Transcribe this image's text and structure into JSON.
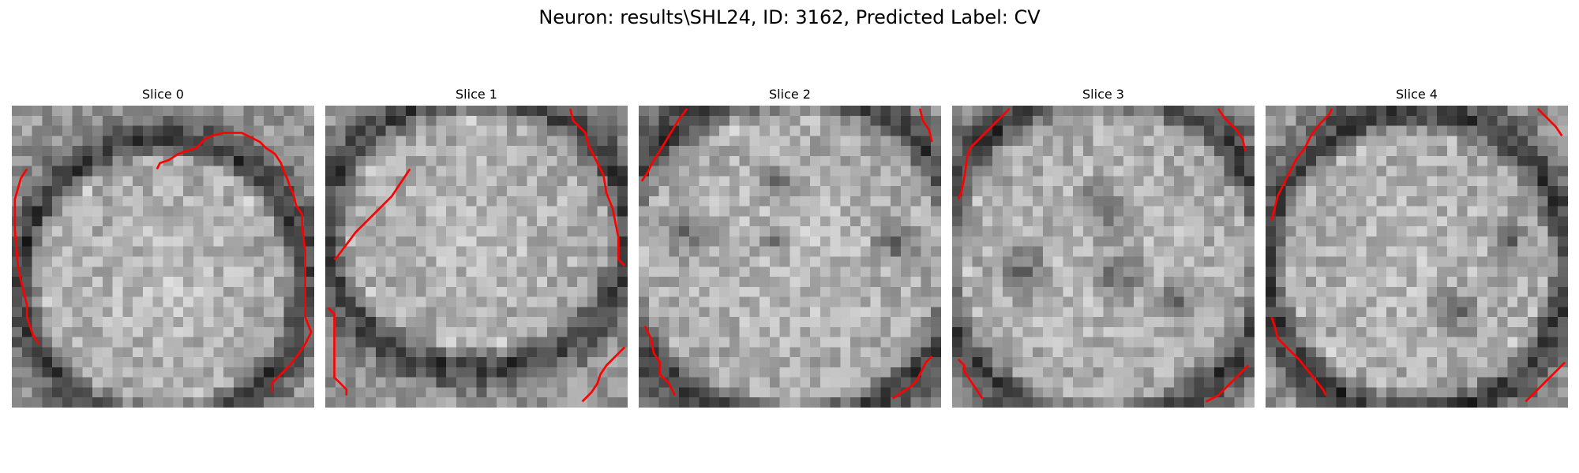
{
  "figure": {
    "title": "Neuron: results\\SHL24, ID: 3162, Predicted Label: CV",
    "contour_color": "#ff0000",
    "colormap": "gray",
    "slices": [
      {
        "title": "Slice 0",
        "seed": 11,
        "center": [
          0.5,
          0.58
        ],
        "radius": [
          0.47,
          0.47
        ],
        "dark_spots": [],
        "contours": [
          [
            [
              5,
              21
            ],
            [
              3,
              24
            ],
            [
              1,
              31
            ],
            [
              1,
              41
            ],
            [
              2,
              53
            ],
            [
              3,
              58
            ],
            [
              5,
              66
            ],
            [
              5,
              70
            ],
            [
              7,
              76
            ],
            [
              9,
              79
            ]
          ],
          [
            [
              48,
              21
            ],
            [
              49,
              19
            ],
            [
              52,
              18
            ],
            [
              55,
              16
            ],
            [
              58,
              15
            ],
            [
              61,
              14
            ],
            [
              63,
              12
            ],
            [
              64,
              11
            ],
            [
              66,
              10
            ],
            [
              70,
              9
            ],
            [
              76,
              9
            ],
            [
              80,
              11
            ],
            [
              82,
              12
            ],
            [
              84,
              14
            ],
            [
              87,
              16
            ],
            [
              89,
              19
            ],
            [
              90,
              22
            ],
            [
              91,
              24
            ],
            [
              92,
              27
            ],
            [
              93,
              29
            ],
            [
              94,
              33
            ],
            [
              96,
              36
            ],
            [
              96,
              40
            ],
            [
              97,
              48
            ],
            [
              97,
              58
            ],
            [
              97,
              70
            ],
            [
              99,
              75
            ],
            [
              97,
              79
            ],
            [
              95,
              82
            ],
            [
              92,
              86
            ],
            [
              88,
              90
            ],
            [
              86,
              92
            ],
            [
              86,
              95
            ]
          ]
        ]
      },
      {
        "title": "Slice 1",
        "seed": 23,
        "center": [
          0.5,
          0.42
        ],
        "radius": [
          0.5,
          0.45
        ],
        "dark_spots": [],
        "contours": [
          [
            [
              3,
              51
            ],
            [
              4,
              50
            ],
            [
              7,
              46
            ],
            [
              10,
              42
            ],
            [
              13,
              39
            ],
            [
              16,
              36
            ],
            [
              19,
              33
            ],
            [
              22,
              30
            ],
            [
              24,
              27
            ],
            [
              26,
              24
            ],
            [
              28,
              21
            ]
          ],
          [
            [
              1,
              67
            ],
            [
              3,
              69
            ],
            [
              3,
              72
            ],
            [
              3,
              80
            ],
            [
              3,
              90
            ],
            [
              5,
              92
            ],
            [
              7,
              94
            ],
            [
              7,
              96
            ]
          ],
          [
            [
              81,
              1
            ],
            [
              82,
              5
            ],
            [
              86,
              9
            ],
            [
              87,
              13
            ],
            [
              90,
              19
            ],
            [
              92,
              23
            ],
            [
              93,
              29
            ],
            [
              95,
              34
            ],
            [
              97,
              44
            ],
            [
              97,
              51
            ],
            [
              99,
              53
            ]
          ],
          [
            [
              85,
              98
            ],
            [
              88,
              95
            ],
            [
              90,
              92
            ],
            [
              91,
              89
            ],
            [
              93,
              86
            ],
            [
              95,
              84
            ],
            [
              99,
              80
            ]
          ]
        ]
      },
      {
        "title": "Slice 2",
        "seed": 37,
        "center": [
          0.5,
          0.5
        ],
        "radius": [
          0.58,
          0.55
        ],
        "dark_spots": [
          [
            0.17,
            0.42,
            0.07
          ],
          [
            0.45,
            0.25,
            0.05
          ],
          [
            0.45,
            0.45,
            0.05
          ],
          [
            0.85,
            0.45,
            0.06
          ]
        ],
        "contours": [
          [
            [
              1,
              25
            ],
            [
              3,
              22
            ],
            [
              5,
              18
            ],
            [
              7,
              15
            ],
            [
              10,
              10
            ],
            [
              13,
              5
            ],
            [
              16,
              1
            ]
          ],
          [
            [
              2,
              73
            ],
            [
              4,
              77
            ],
            [
              5,
              82
            ],
            [
              7,
              85
            ],
            [
              7,
              89
            ],
            [
              10,
              92
            ],
            [
              12,
              96
            ]
          ],
          [
            [
              93,
              1
            ],
            [
              94,
              5
            ],
            [
              96,
              8
            ],
            [
              97,
              12
            ]
          ],
          [
            [
              84,
              97
            ],
            [
              87,
              95
            ],
            [
              90,
              93
            ],
            [
              92,
              91
            ],
            [
              93,
              89
            ],
            [
              95,
              85
            ],
            [
              97,
              83
            ]
          ]
        ]
      },
      {
        "title": "Slice 3",
        "seed": 51,
        "center": [
          0.5,
          0.5
        ],
        "radius": [
          0.55,
          0.55
        ],
        "dark_spots": [
          [
            0.5,
            0.35,
            0.08
          ],
          [
            0.55,
            0.55,
            0.08
          ],
          [
            0.25,
            0.55,
            0.07
          ],
          [
            0.75,
            0.65,
            0.06
          ]
        ],
        "contours": [
          [
            [
              2,
              31
            ],
            [
              3,
              29
            ],
            [
              4,
              24
            ],
            [
              5,
              17
            ],
            [
              6,
              14
            ],
            [
              10,
              10
            ],
            [
              14,
              6
            ],
            [
              18,
              2
            ],
            [
              19,
              1
            ]
          ],
          [
            [
              2,
              84
            ],
            [
              4,
              86
            ],
            [
              4,
              88
            ],
            [
              6,
              91
            ],
            [
              8,
              94
            ],
            [
              10,
              97
            ]
          ],
          [
            [
              88,
              1
            ],
            [
              90,
              4
            ],
            [
              94,
              8
            ],
            [
              96,
              11
            ],
            [
              97,
              15
            ]
          ],
          [
            [
              84,
              98
            ],
            [
              88,
              96
            ],
            [
              91,
              93
            ],
            [
              93,
              91
            ],
            [
              96,
              88
            ],
            [
              98,
              86
            ]
          ]
        ]
      },
      {
        "title": "Slice 4",
        "seed": 67,
        "center": [
          0.5,
          0.52
        ],
        "radius": [
          0.5,
          0.5
        ],
        "dark_spots": [
          [
            0.62,
            0.68,
            0.07
          ],
          [
            0.8,
            0.45,
            0.05
          ]
        ],
        "contours": [
          [
            [
              2,
              38
            ],
            [
              3,
              34
            ],
            [
              4,
              30
            ],
            [
              6,
              26
            ],
            [
              8,
              22
            ],
            [
              10,
              18
            ],
            [
              13,
              14
            ],
            [
              15,
              10
            ],
            [
              18,
              6
            ],
            [
              21,
              3
            ],
            [
              22,
              1
            ]
          ],
          [
            [
              2,
              70
            ],
            [
              3,
              73
            ],
            [
              4,
              77
            ],
            [
              7,
              80
            ],
            [
              11,
              84
            ],
            [
              15,
              89
            ],
            [
              19,
              94
            ],
            [
              20,
              96
            ]
          ],
          [
            [
              90,
              1
            ],
            [
              93,
              4
            ],
            [
              96,
              7
            ],
            [
              98,
              10
            ]
          ],
          [
            [
              86,
              98
            ],
            [
              90,
              94
            ],
            [
              93,
              91
            ],
            [
              96,
              88
            ],
            [
              99,
              85
            ]
          ]
        ]
      }
    ]
  }
}
